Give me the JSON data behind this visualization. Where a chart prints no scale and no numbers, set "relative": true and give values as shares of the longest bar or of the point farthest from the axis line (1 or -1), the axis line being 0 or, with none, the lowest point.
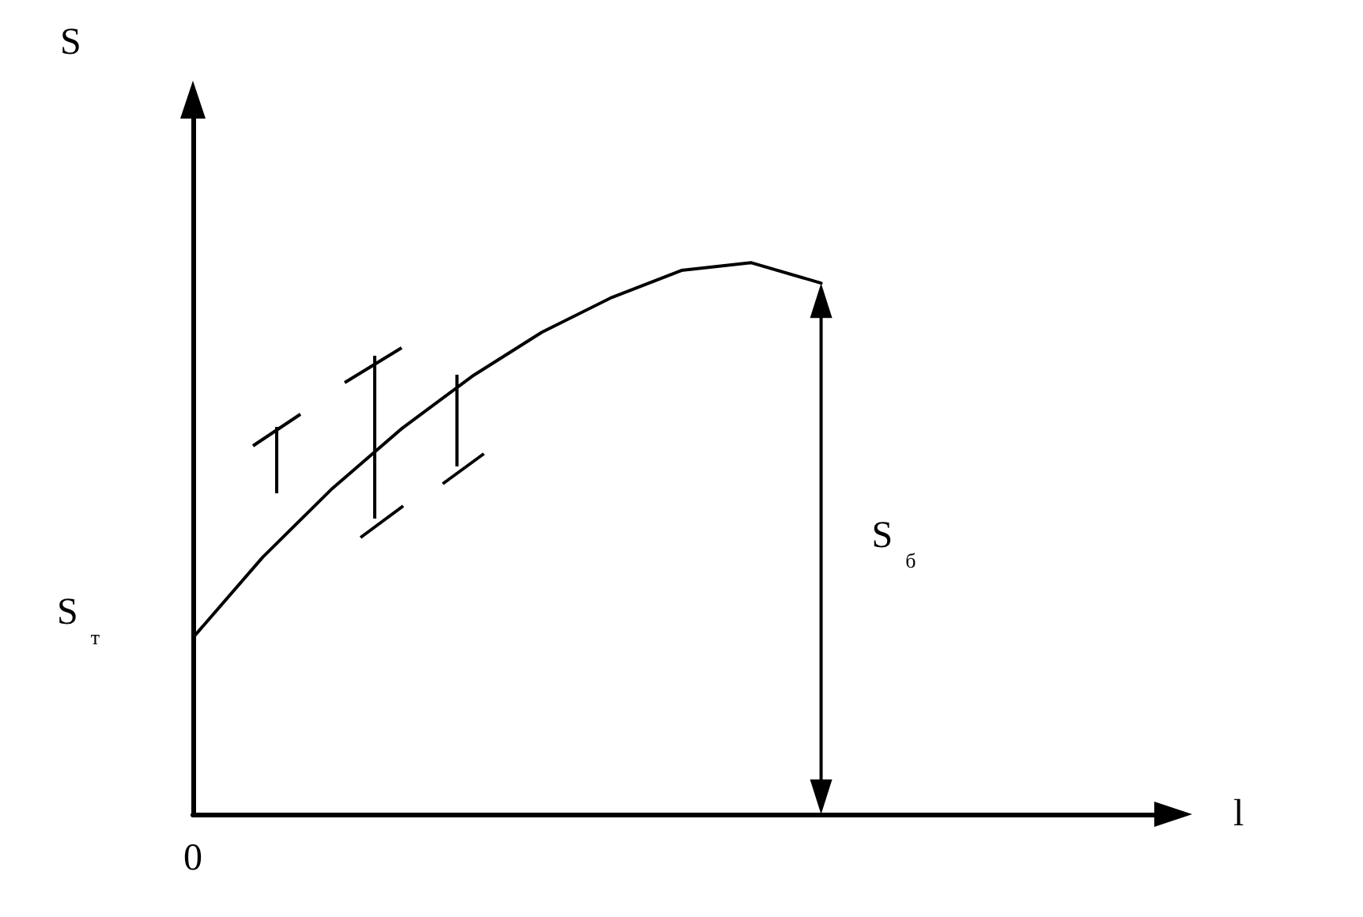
{
  "chart_data": {
    "type": "line",
    "relative": true,
    "xlabel": "l",
    "grid": false,
    "marker": "none",
    "line_style": "solid",
    "categories": [
      null,
      null,
      null,
      null,
      null,
      null,
      null,
      null,
      null,
      null,
      null,
      null,
      null,
      null,
      null
    ],
    "series": [
      {
        "color": "#000000",
        "values": [
          0.32,
          0.466,
          0.591,
          0.7,
          0.794,
          0.874,
          0.937,
          0.986,
          1.0,
          0.963,
          null,
          null,
          null,
          null,
          null
        ]
      }
    ],
    "annotations": [
      "S",
      "0",
      "S$_{т}$",
      "S$_{б}$"
    ]
  }
}
